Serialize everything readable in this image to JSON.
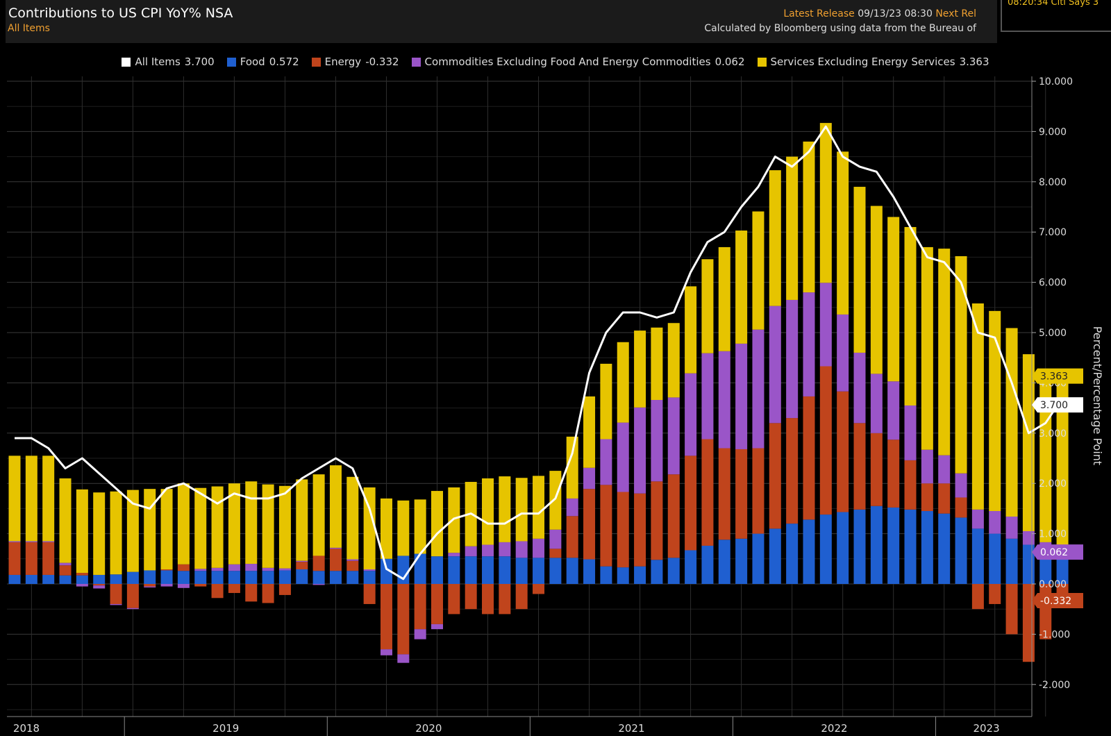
{
  "header": {
    "title": "Contributions to US CPI YoY% NSA",
    "subtitle": "All Items",
    "release_label": "Latest Release",
    "release_value": "09/13/23 08:30",
    "next_label": "Next Rel",
    "source": "Calculated by Bloomberg using data from the Bureau of",
    "ticker": "08:20:34 Citi Says 3"
  },
  "legend": [
    {
      "name": "All Items",
      "value": "3.700",
      "color": "#ffffff"
    },
    {
      "name": "Food",
      "value": "0.572",
      "color": "#1f5fd0"
    },
    {
      "name": "Energy",
      "value": "-0.332",
      "color": "#c0441c"
    },
    {
      "name": "Commodities Excluding Food And Energy Commodities",
      "value": "0.062",
      "color": "#9a55c8"
    },
    {
      "name": "Services Excluding Energy Services",
      "value": "3.363",
      "color": "#e6c400"
    }
  ],
  "chart_data": {
    "type": "bar",
    "stacked": true,
    "ylabel": "Percent/Percentage Point",
    "ylim": [
      -2.4,
      10.1
    ],
    "yticks": [
      "-2.000",
      "-1.000",
      "0.000",
      "1.000",
      "2.000",
      "3.000",
      "4.000",
      "5.000",
      "6.000",
      "7.000",
      "8.000",
      "9.000",
      "10.000"
    ],
    "xtick_labels": [
      "2018",
      "2019",
      "2020",
      "2021",
      "2022",
      "2023"
    ],
    "x": [
      "2018-06",
      "2018-07",
      "2018-08",
      "2018-09",
      "2018-10",
      "2018-11",
      "2018-12",
      "2019-01",
      "2019-02",
      "2019-03",
      "2019-04",
      "2019-05",
      "2019-06",
      "2019-07",
      "2019-08",
      "2019-09",
      "2019-10",
      "2019-11",
      "2019-12",
      "2020-01",
      "2020-02",
      "2020-03",
      "2020-04",
      "2020-05",
      "2020-06",
      "2020-07",
      "2020-08",
      "2020-09",
      "2020-10",
      "2020-11",
      "2020-12",
      "2021-01",
      "2021-02",
      "2021-03",
      "2021-04",
      "2021-05",
      "2021-06",
      "2021-07",
      "2021-08",
      "2021-09",
      "2021-10",
      "2021-11",
      "2021-12",
      "2022-01",
      "2022-02",
      "2022-03",
      "2022-04",
      "2022-05",
      "2022-06",
      "2022-07",
      "2022-08",
      "2022-09",
      "2022-10",
      "2022-11",
      "2022-12",
      "2023-01",
      "2023-02",
      "2023-03",
      "2023-04",
      "2023-05",
      "2023-06",
      "2023-07",
      "2023-08"
    ],
    "series": [
      {
        "name": "All Items",
        "kind": "line",
        "color": "#ffffff",
        "values": [
          2.9,
          2.9,
          2.7,
          2.3,
          2.5,
          2.2,
          1.9,
          1.6,
          1.5,
          1.9,
          2.0,
          1.8,
          1.6,
          1.8,
          1.7,
          1.7,
          1.8,
          2.1,
          2.3,
          2.5,
          2.3,
          1.5,
          0.3,
          0.1,
          0.6,
          1.0,
          1.3,
          1.4,
          1.2,
          1.2,
          1.4,
          1.4,
          1.7,
          2.6,
          4.2,
          5.0,
          5.4,
          5.4,
          5.3,
          5.4,
          6.2,
          6.8,
          7.0,
          7.5,
          7.9,
          8.5,
          8.3,
          8.6,
          9.1,
          8.5,
          8.3,
          8.2,
          7.7,
          7.1,
          6.5,
          6.4,
          6.0,
          5.0,
          4.9,
          4.0,
          3.0,
          3.2,
          3.7
        ]
      },
      {
        "name": "Food",
        "kind": "bar",
        "color": "#1f5fd0",
        "values": [
          0.18,
          0.18,
          0.18,
          0.17,
          0.17,
          0.18,
          0.19,
          0.24,
          0.27,
          0.27,
          0.26,
          0.26,
          0.26,
          0.26,
          0.26,
          0.26,
          0.27,
          0.29,
          0.26,
          0.26,
          0.26,
          0.26,
          0.5,
          0.56,
          0.6,
          0.55,
          0.55,
          0.55,
          0.55,
          0.55,
          0.52,
          0.52,
          0.52,
          0.52,
          0.49,
          0.35,
          0.33,
          0.35,
          0.48,
          0.52,
          0.67,
          0.76,
          0.88,
          0.9,
          1.0,
          1.1,
          1.2,
          1.28,
          1.38,
          1.43,
          1.48,
          1.55,
          1.52,
          1.48,
          1.45,
          1.4,
          1.32,
          1.1,
          1.0,
          0.9,
          0.78,
          0.65,
          0.572
        ]
      },
      {
        "name": "Energy",
        "kind": "bar",
        "color": "#c0441c",
        "values": [
          0.65,
          0.65,
          0.65,
          0.2,
          0.05,
          -0.03,
          -0.4,
          -0.48,
          -0.05,
          0.02,
          0.13,
          -0.05,
          -0.28,
          -0.18,
          -0.35,
          -0.38,
          -0.22,
          0.15,
          0.3,
          0.44,
          0.2,
          -0.4,
          -1.3,
          -1.4,
          -0.9,
          -0.8,
          -0.6,
          -0.5,
          -0.6,
          -0.6,
          -0.5,
          -0.2,
          0.18,
          0.83,
          1.4,
          1.62,
          1.5,
          1.45,
          1.56,
          1.66,
          1.88,
          2.12,
          1.82,
          1.78,
          1.7,
          2.1,
          2.1,
          2.45,
          2.95,
          2.4,
          1.72,
          1.45,
          1.35,
          0.98,
          0.55,
          0.6,
          0.4,
          -0.5,
          -0.4,
          -1.0,
          -1.55,
          -1.1,
          -0.332
        ]
      },
      {
        "name": "Commodities Excluding Food And Energy Commodities",
        "kind": "bar",
        "color": "#9a55c8",
        "values": [
          0.02,
          0.02,
          0.02,
          0.05,
          -0.05,
          -0.06,
          -0.02,
          -0.02,
          -0.02,
          -0.05,
          -0.08,
          0.04,
          0.06,
          0.13,
          0.14,
          0.06,
          0.04,
          0.02,
          -0.02,
          0.02,
          0.03,
          0.03,
          -0.12,
          -0.17,
          -0.2,
          -0.1,
          0.07,
          0.2,
          0.23,
          0.28,
          0.33,
          0.38,
          0.38,
          0.35,
          0.42,
          0.91,
          1.38,
          1.71,
          1.62,
          1.53,
          1.64,
          1.71,
          1.93,
          2.1,
          2.36,
          2.33,
          2.35,
          2.07,
          1.66,
          1.53,
          1.4,
          1.18,
          1.16,
          1.09,
          0.67,
          0.56,
          0.48,
          0.38,
          0.45,
          0.44,
          0.27,
          0.18,
          0.062
        ]
      },
      {
        "name": "Services Excluding Energy Services",
        "kind": "bar",
        "color": "#e6c400",
        "values": [
          1.7,
          1.7,
          1.7,
          1.68,
          1.66,
          1.64,
          1.65,
          1.63,
          1.62,
          1.6,
          1.61,
          1.61,
          1.62,
          1.61,
          1.64,
          1.66,
          1.64,
          1.62,
          1.62,
          1.64,
          1.64,
          1.63,
          1.2,
          1.1,
          1.08,
          1.3,
          1.3,
          1.28,
          1.32,
          1.31,
          1.26,
          1.25,
          1.17,
          1.23,
          1.42,
          1.5,
          1.6,
          1.53,
          1.44,
          1.48,
          1.73,
          1.87,
          2.07,
          2.25,
          2.35,
          2.7,
          2.85,
          3.0,
          3.18,
          3.24,
          3.3,
          3.34,
          3.27,
          3.55,
          4.03,
          4.11,
          4.32,
          4.1,
          3.98,
          3.75,
          3.52,
          3.45,
          3.363
        ]
      }
    ],
    "end_labels": [
      {
        "series": "Services Excluding Energy Services",
        "text": "3.363"
      },
      {
        "series": "All Items",
        "text": "3.700"
      },
      {
        "series": "Commodities Excluding Food And Energy Commodities",
        "text": "0.062"
      },
      {
        "series": "Energy",
        "text": "-0.332"
      }
    ],
    "grid": true,
    "legend_position": "top-center"
  }
}
